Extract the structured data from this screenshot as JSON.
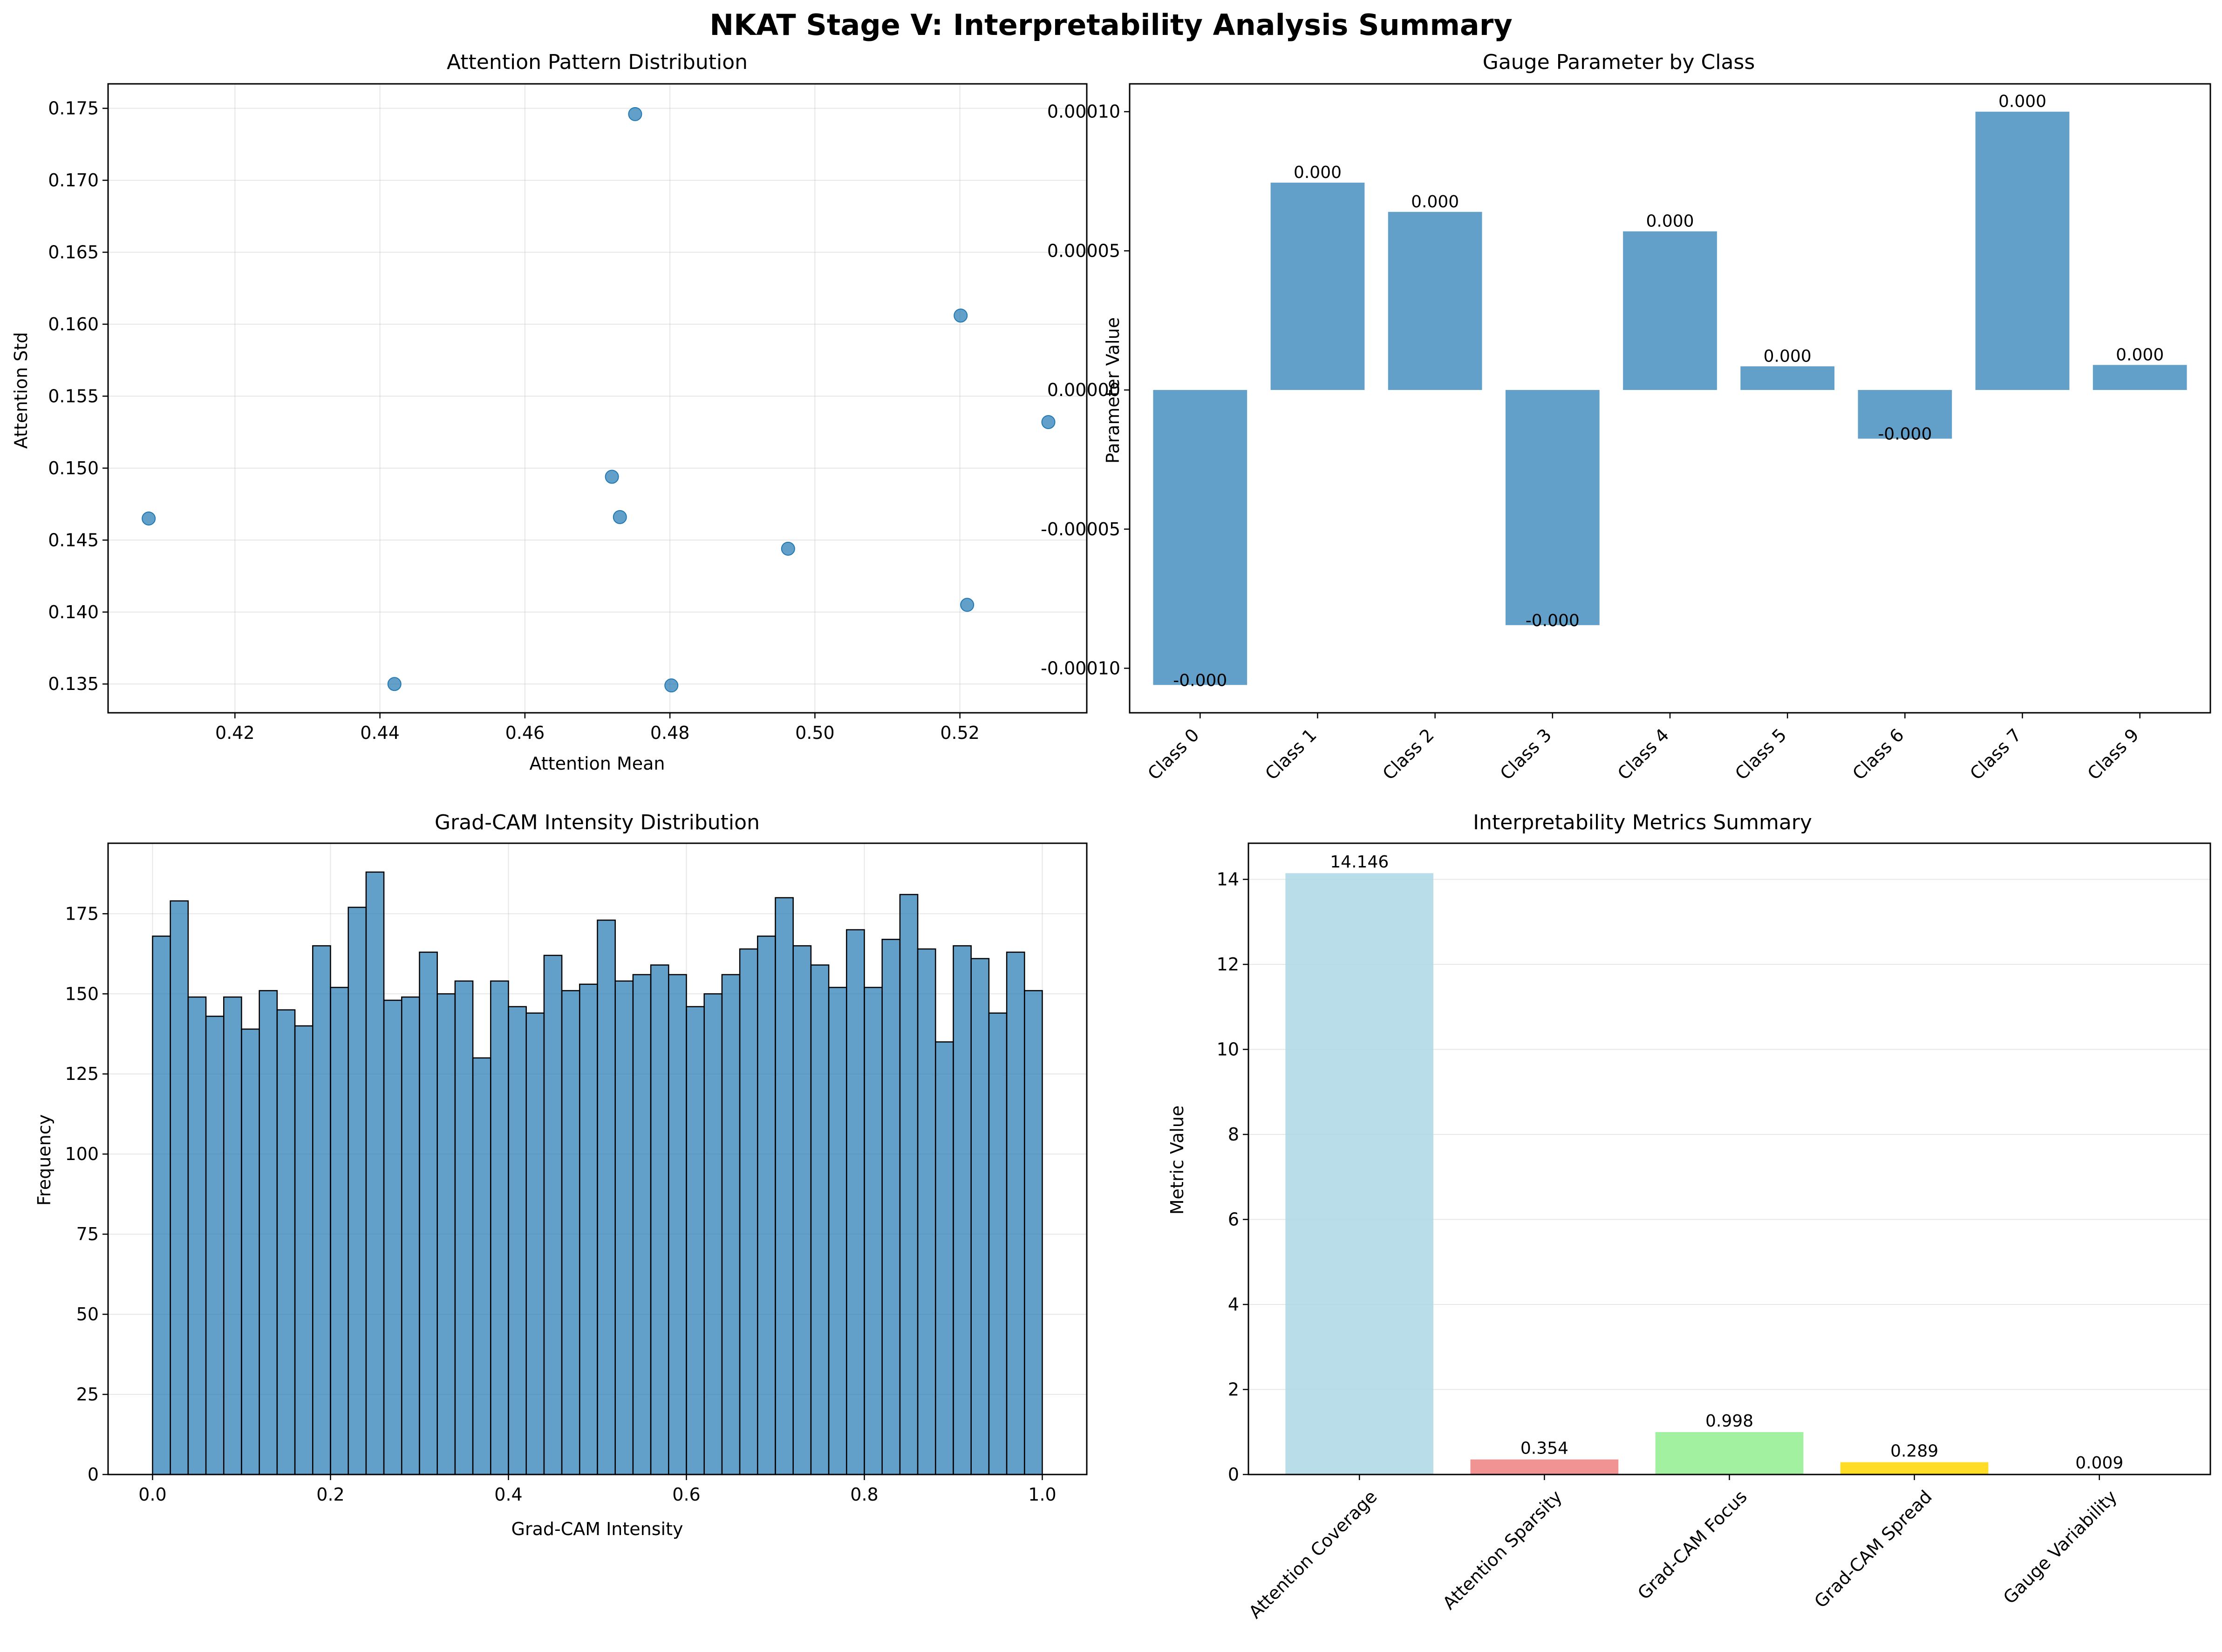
{
  "figure": {
    "title": "NKAT Stage V: Interpretability Analysis Summary"
  },
  "chart_data": [
    {
      "id": "scatter",
      "type": "scatter",
      "title": "Attention Pattern Distribution",
      "xlabel": "Attention Mean",
      "ylabel": "Attention Std",
      "xlim": [
        0.4025,
        0.5375
      ],
      "ylim": [
        0.133,
        0.1767
      ],
      "xticks": [
        0.42,
        0.44,
        0.46,
        0.48,
        0.5,
        0.52
      ],
      "xtick_labels": [
        "0.42",
        "0.44",
        "0.46",
        "0.48",
        "0.50",
        "0.52"
      ],
      "yticks": [
        0.135,
        0.14,
        0.145,
        0.15,
        0.155,
        0.16,
        0.165,
        0.17,
        0.175
      ],
      "ytick_labels": [
        "0.135",
        "0.140",
        "0.145",
        "0.150",
        "0.155",
        "0.160",
        "0.165",
        "0.170",
        "0.175"
      ],
      "grid": true,
      "color": "#1f77b4",
      "points": [
        {
          "x": 0.4081,
          "y": 0.1465
        },
        {
          "x": 0.442,
          "y": 0.135
        },
        {
          "x": 0.472,
          "y": 0.1494
        },
        {
          "x": 0.4731,
          "y": 0.1466
        },
        {
          "x": 0.4752,
          "y": 0.1746
        },
        {
          "x": 0.4802,
          "y": 0.1349
        },
        {
          "x": 0.4963,
          "y": 0.1444
        },
        {
          "x": 0.5201,
          "y": 0.1606
        },
        {
          "x": 0.521,
          "y": 0.1405
        },
        {
          "x": 0.5322,
          "y": 0.1532
        }
      ]
    },
    {
      "id": "gauge",
      "type": "bar",
      "title": "Gauge Parameter by Class",
      "xlabel": "",
      "ylabel": "Parameter Value",
      "ylim": [
        -0.000116,
        0.00011
      ],
      "yticks": [
        -0.0001,
        -5e-05,
        0,
        5e-05,
        0.0001
      ],
      "ytick_labels": [
        "-0.00010",
        "-0.00005",
        "0.00000",
        "0.00005",
        "0.00010"
      ],
      "grid": false,
      "color": "#1f77b4",
      "categories": [
        "Class 0",
        "Class 1",
        "Class 2",
        "Class 3",
        "Class 4",
        "Class 5",
        "Class 6",
        "Class 7",
        "Class 9"
      ],
      "values": [
        -0.000106,
        7.45e-05,
        6.4e-05,
        -8.45e-05,
        5.7e-05,
        8.5e-06,
        -1.75e-05,
        0.0001,
        9e-06
      ],
      "labels": [
        "-0.000",
        "0.000",
        "0.000",
        "-0.000",
        "0.000",
        "0.000",
        "-0.000",
        "0.000",
        "0.000"
      ]
    },
    {
      "id": "hist",
      "type": "bar",
      "title": "Grad-CAM Intensity Distribution",
      "xlabel": "Grad-CAM Intensity",
      "ylabel": "Frequency",
      "xlim": [
        -0.05,
        1.05
      ],
      "ylim": [
        0,
        197
      ],
      "xticks": [
        0.0,
        0.2,
        0.4,
        0.6,
        0.8,
        1.0
      ],
      "xtick_labels": [
        "0.0",
        "0.2",
        "0.4",
        "0.6",
        "0.8",
        "1.0"
      ],
      "yticks": [
        0,
        25,
        50,
        75,
        100,
        125,
        150,
        175
      ],
      "ytick_labels": [
        "0",
        "25",
        "50",
        "75",
        "100",
        "125",
        "150",
        "175"
      ],
      "grid": true,
      "color": "#1f77b4",
      "bin_range": [
        0,
        1
      ],
      "counts": [
        168,
        179,
        149,
        143,
        149,
        139,
        151,
        145,
        140,
        165,
        152,
        177,
        188,
        148,
        149,
        163,
        150,
        154,
        130,
        154,
        146,
        144,
        162,
        151,
        153,
        173,
        154,
        156,
        159,
        156,
        146,
        150,
        156,
        164,
        168,
        180,
        165,
        159,
        152,
        170,
        152,
        167,
        181,
        164,
        135,
        165,
        161,
        144,
        163,
        151
      ]
    },
    {
      "id": "metrics",
      "type": "bar",
      "title": "Interpretability Metrics Summary",
      "xlabel": "",
      "ylabel": "Metric Value",
      "ylim": [
        0,
        14.85
      ],
      "yticks": [
        0,
        2,
        4,
        6,
        8,
        10,
        12,
        14
      ],
      "ytick_labels": [
        "0",
        "2",
        "4",
        "6",
        "8",
        "10",
        "12",
        "14"
      ],
      "grid": true,
      "categories": [
        "Attention Coverage",
        "Attention Sparsity",
        "Grad-CAM Focus",
        "Grad-CAM Spread",
        "Gauge Variability"
      ],
      "values": [
        14.146,
        0.354,
        0.998,
        0.289,
        0.009
      ],
      "labels": [
        "14.146",
        "0.354",
        "0.998",
        "0.289",
        "0.009"
      ],
      "colors": [
        "#add8e6",
        "#f08080",
        "#90ee90",
        "#ffd700",
        "#dda0dd"
      ]
    }
  ]
}
